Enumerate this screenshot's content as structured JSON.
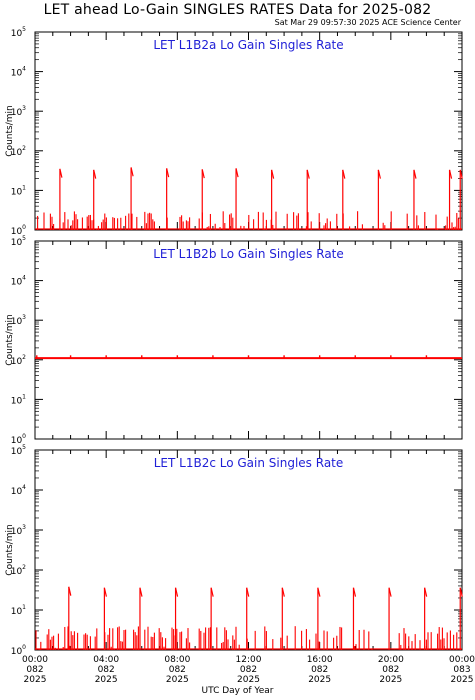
{
  "title": "LET ahead Lo-Gain SINGLES RATES Data for 2025-082",
  "timestamp": "Sat Mar 29 09:57:30 2025 ACE Science Center",
  "x_axis_title": "UTC Day of Year",
  "chart_data": [
    {
      "type": "scatter",
      "title": "LET L1B2a Lo Gain Singles Rate",
      "ylabel": "Counts/min",
      "xlabel": "UTC Day of Year",
      "y_scale": "log",
      "ylim": [
        1,
        100000
      ],
      "xlim_hours": [
        0,
        24
      ],
      "color": "#ff0000",
      "series": [
        {
          "baseline_level": 1,
          "noise_max": 3,
          "spikes": [
            {
              "hour": 1.4,
              "value": 35
            },
            {
              "hour": 3.3,
              "value": 33
            },
            {
              "hour": 5.4,
              "value": 38
            },
            {
              "hour": 7.4,
              "value": 36
            },
            {
              "hour": 9.4,
              "value": 34
            },
            {
              "hour": 11.3,
              "value": 36
            },
            {
              "hour": 13.3,
              "value": 33
            },
            {
              "hour": 15.3,
              "value": 33
            },
            {
              "hour": 17.3,
              "value": 33
            },
            {
              "hour": 19.3,
              "value": 33
            },
            {
              "hour": 21.3,
              "value": 33
            },
            {
              "hour": 23.3,
              "value": 33
            },
            {
              "hour": 23.9,
              "value": 33
            }
          ]
        }
      ]
    },
    {
      "type": "line",
      "title": "LET L1B2b Lo Gain Singles Rate",
      "ylabel": "Counts/min",
      "xlabel": "UTC Day of Year",
      "y_scale": "log",
      "ylim": [
        1,
        100000
      ],
      "xlim_hours": [
        0,
        24
      ],
      "color": "#ff0000",
      "series": [
        {
          "baseline_level": 110,
          "noise_max": 0,
          "spikes": [
            {
              "hour": 0.1,
              "value": 130
            },
            {
              "hour": 2.0,
              "value": 130
            },
            {
              "hour": 4.0,
              "value": 130
            },
            {
              "hour": 6.0,
              "value": 130
            },
            {
              "hour": 8.0,
              "value": 130
            },
            {
              "hour": 10.0,
              "value": 130
            },
            {
              "hour": 12.0,
              "value": 130
            },
            {
              "hour": 14.0,
              "value": 130
            },
            {
              "hour": 16.0,
              "value": 130
            },
            {
              "hour": 18.0,
              "value": 130
            },
            {
              "hour": 20.0,
              "value": 130
            },
            {
              "hour": 22.0,
              "value": 130
            }
          ]
        }
      ]
    },
    {
      "type": "scatter",
      "title": "LET L1B2c Lo Gain Singles Rate",
      "ylabel": "Counts/min",
      "xlabel": "UTC Day of Year",
      "y_scale": "log",
      "ylim": [
        1,
        100000
      ],
      "xlim_hours": [
        0,
        24
      ],
      "color": "#ff0000",
      "series": [
        {
          "baseline_level": 1,
          "noise_max": 4,
          "spikes": [
            {
              "hour": 1.9,
              "value": 38
            },
            {
              "hour": 3.9,
              "value": 36
            },
            {
              "hour": 5.9,
              "value": 36
            },
            {
              "hour": 7.9,
              "value": 36
            },
            {
              "hour": 9.9,
              "value": 36
            },
            {
              "hour": 11.9,
              "value": 36
            },
            {
              "hour": 13.9,
              "value": 36
            },
            {
              "hour": 15.9,
              "value": 36
            },
            {
              "hour": 17.9,
              "value": 36
            },
            {
              "hour": 19.9,
              "value": 36
            },
            {
              "hour": 21.9,
              "value": 36
            },
            {
              "hour": 23.9,
              "value": 36
            }
          ]
        }
      ]
    }
  ],
  "y_tick_labels": [
    {
      "base": "10",
      "exp": "0",
      "value": 1
    },
    {
      "base": "10",
      "exp": "1",
      "value": 10
    },
    {
      "base": "10",
      "exp": "2",
      "value": 100
    },
    {
      "base": "10",
      "exp": "3",
      "value": 1000
    },
    {
      "base": "10",
      "exp": "4",
      "value": 10000
    },
    {
      "base": "10",
      "exp": "5",
      "value": 100000
    }
  ],
  "x_tick_labels": [
    {
      "hour": 0,
      "time": "00:00",
      "doy": "082",
      "year": "2025"
    },
    {
      "hour": 4,
      "time": "04:00",
      "doy": "082",
      "year": "2025"
    },
    {
      "hour": 8,
      "time": "08:00",
      "doy": "082",
      "year": "2025"
    },
    {
      "hour": 12,
      "time": "12:00",
      "doy": "082",
      "year": "2025"
    },
    {
      "hour": 16,
      "time": "16:00",
      "doy": "082",
      "year": "2025"
    },
    {
      "hour": 20,
      "time": "20:00",
      "doy": "082",
      "year": "2025"
    },
    {
      "hour": 24,
      "time": "00:00",
      "doy": "083",
      "year": "2025"
    }
  ]
}
